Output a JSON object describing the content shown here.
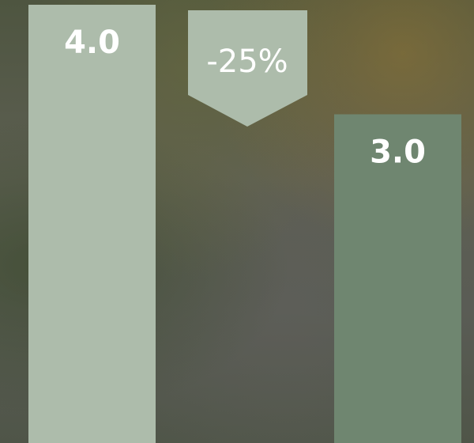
{
  "chart_data": {
    "type": "bar",
    "categories": [
      null,
      null
    ],
    "values": [
      4.0,
      3.0
    ],
    "value_labels": [
      "4.0",
      "3.0"
    ],
    "colors": [
      "#adbcab",
      "#6f8670"
    ],
    "ylim": [
      0,
      4.0
    ],
    "annotation": "-25%"
  }
}
